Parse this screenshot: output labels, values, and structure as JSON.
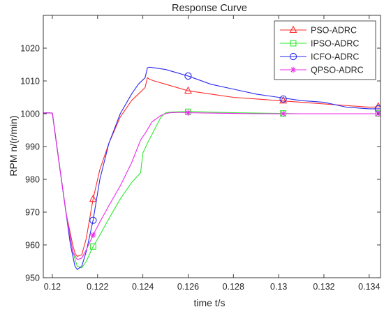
{
  "chart_data": {
    "type": "line",
    "title": "Response Curve",
    "xlabel": "time t/s",
    "ylabel": "RPM n/(r/min)",
    "xlim": [
      0.1196,
      0.1345
    ],
    "ylim": [
      950,
      1030
    ],
    "xticks": [
      0.12,
      0.122,
      0.124,
      0.126,
      0.128,
      0.13,
      0.132,
      0.134
    ],
    "xtick_labels": [
      "0.12",
      "0.122",
      "0.124",
      "0.126",
      "0.128",
      "0.13",
      "0.132",
      "0.134"
    ],
    "yticks": [
      950,
      960,
      970,
      980,
      990,
      1000,
      1010,
      1020
    ],
    "ytick_labels": [
      "950",
      "960",
      "970",
      "980",
      "990",
      "1000",
      "1010",
      "1020"
    ],
    "grid": false,
    "legend_position": "top-right",
    "series": [
      {
        "name": "PSO-ADRC",
        "color": "#ff2a2a",
        "marker": "triangle",
        "x": [
          0.1196,
          0.12,
          0.1203,
          0.1206,
          0.1209,
          0.121,
          0.1211,
          0.1213,
          0.1215,
          0.1218,
          0.1221,
          0.1225,
          0.123,
          0.1235,
          0.1238,
          0.1241,
          0.1242,
          0.1243,
          0.1245,
          0.125,
          0.126,
          0.127,
          0.128,
          0.129,
          0.13,
          0.131,
          0.132,
          0.133,
          0.134,
          0.1345
        ],
        "y": [
          1000.3,
          1000.2,
          985,
          970,
          960,
          957.5,
          956.5,
          957,
          962,
          974,
          983,
          991,
          999,
          1004,
          1006,
          1008,
          1011,
          1010.5,
          1010,
          1009,
          1007,
          1006,
          1005,
          1004.5,
          1004,
          1003.5,
          1003,
          1002.5,
          1002,
          1002.1
        ],
        "marker_x": [
          0.1218,
          0.126,
          0.1302,
          0.1344
        ],
        "marker_y": [
          974,
          1007,
          1004,
          1002.2
        ]
      },
      {
        "name": "IPSO-ADRC",
        "color": "#2ee82e",
        "marker": "square",
        "x": [
          0.1196,
          0.12,
          0.1203,
          0.1206,
          0.1209,
          0.1211,
          0.1213,
          0.1215,
          0.1218,
          0.1221,
          0.1225,
          0.123,
          0.1235,
          0.1239,
          0.124,
          0.1242,
          0.1245,
          0.1248,
          0.125,
          0.1252,
          0.1256,
          0.126,
          0.127,
          0.128,
          0.129,
          0.13,
          0.131,
          0.132,
          0.133,
          0.134,
          0.1345
        ],
        "y": [
          1000.3,
          1000.2,
          985,
          970,
          958,
          953.5,
          953,
          955,
          959.5,
          963,
          968,
          974,
          979,
          982,
          988,
          991,
          995,
          999,
          1000.3,
          1000.5,
          1000.6,
          1000.7,
          1000.5,
          1000.3,
          1000.2,
          1000.1,
          1000,
          1000,
          1000,
          1000,
          1000
        ],
        "marker_x": [
          0.1218,
          0.126,
          0.1302,
          0.1344
        ],
        "marker_y": [
          959.5,
          1000.6,
          1000.1,
          1000.1
        ]
      },
      {
        "name": "ICFO-ADRC",
        "color": "#2a2aee",
        "marker": "circle",
        "x": [
          0.1196,
          0.12,
          0.1203,
          0.1206,
          0.1208,
          0.121,
          0.1211,
          0.1213,
          0.1215,
          0.1218,
          0.1221,
          0.1225,
          0.123,
          0.1235,
          0.1238,
          0.1241,
          0.1242,
          0.1243,
          0.1245,
          0.125,
          0.126,
          0.127,
          0.128,
          0.129,
          0.13,
          0.131,
          0.132,
          0.133,
          0.134,
          0.1345
        ],
        "y": [
          1000.3,
          1000.2,
          985,
          970,
          960,
          953.5,
          952.5,
          953.5,
          958,
          967.5,
          980,
          991,
          1000,
          1006,
          1009,
          1011,
          1014,
          1014.2,
          1014,
          1013.5,
          1011.5,
          1009,
          1007.5,
          1006,
          1005,
          1004,
          1003.5,
          1002,
          1001.5,
          1001.5
        ],
        "marker_x": [
          0.1218,
          0.126,
          0.1302,
          0.1344
        ],
        "marker_y": [
          967.5,
          1011.5,
          1004.5,
          1001.5
        ]
      },
      {
        "name": "QPSO-ADRC",
        "color": "#ee2aee",
        "marker": "asterisk",
        "x": [
          0.1196,
          0.12,
          0.1203,
          0.1206,
          0.1209,
          0.1211,
          0.1213,
          0.1215,
          0.1218,
          0.1221,
          0.1225,
          0.123,
          0.1235,
          0.1239,
          0.1241,
          0.1244,
          0.1248,
          0.125,
          0.1252,
          0.1256,
          0.126,
          0.127,
          0.128,
          0.129,
          0.13,
          0.131,
          0.132,
          0.133,
          0.134,
          0.1345
        ],
        "y": [
          1000.3,
          1000.2,
          985,
          970,
          958,
          955.5,
          956,
          958.5,
          963,
          967,
          972,
          978,
          985,
          992,
          994,
          997.5,
          999.5,
          1000,
          1000.3,
          1000.4,
          1000.3,
          1000.2,
          1000.1,
          1000,
          1000,
          1000,
          1000,
          1000,
          1000,
          1000
        ],
        "marker_x": [
          0.1218,
          0.126,
          0.1302,
          0.1344
        ],
        "marker_y": [
          963,
          1000.3,
          1000,
          1000
        ]
      }
    ]
  }
}
